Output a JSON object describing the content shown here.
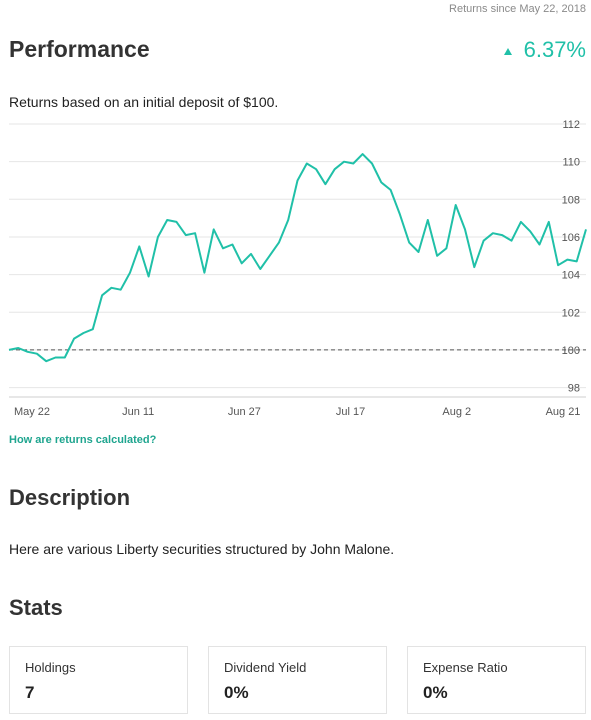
{
  "header": {
    "returns_since": "Returns since May 22, 2018",
    "title": "Performance",
    "change": "6.37%",
    "change_icon": "up-triangle-icon",
    "subtitle": "Returns based on an initial deposit of $100.",
    "accent_color": "#20c0a8"
  },
  "chart_data": {
    "type": "line",
    "title": "",
    "xlabel": "",
    "ylabel": "",
    "ylim": [
      97.5,
      112
    ],
    "y_ticks": [
      "98",
      "100",
      "102",
      "104",
      "106",
      "108",
      "110",
      "112"
    ],
    "x_ticks": [
      "May 22",
      "Jun 11",
      "Jun 27",
      "Jul 17",
      "Aug 2",
      "Aug 21"
    ],
    "baseline": 100,
    "grid": true,
    "line_color": "#20c0a8",
    "series": [
      {
        "values": [
          100.0,
          100.1,
          99.9,
          99.8,
          99.4,
          99.6,
          99.6,
          100.6,
          100.9,
          101.1,
          102.9,
          103.3,
          103.2,
          104.1,
          105.5,
          103.9,
          106.0,
          106.9,
          106.8,
          106.1,
          106.2,
          104.1,
          106.4,
          105.4,
          105.6,
          104.6,
          105.1,
          104.3,
          105.0,
          105.7,
          106.9,
          109.0,
          109.9,
          109.6,
          108.8,
          109.6,
          110.0,
          109.9,
          110.4,
          109.9,
          108.9,
          108.5,
          107.2,
          105.7,
          105.2,
          106.9,
          105.0,
          105.4,
          107.7,
          106.4,
          104.4,
          105.8,
          106.2,
          106.1,
          105.8,
          106.8,
          106.3,
          105.6,
          106.8,
          104.5,
          104.8,
          104.7,
          106.4
        ]
      }
    ]
  },
  "links": {
    "how_returns": "How are returns calculated?"
  },
  "description": {
    "title": "Description",
    "text": "Here are various Liberty securities structured by John Malone."
  },
  "stats": {
    "title": "Stats",
    "cards": [
      {
        "label": "Holdings",
        "value": "7"
      },
      {
        "label": "Dividend Yield",
        "value": "0%"
      },
      {
        "label": "Expense Ratio",
        "value": "0%"
      }
    ]
  }
}
